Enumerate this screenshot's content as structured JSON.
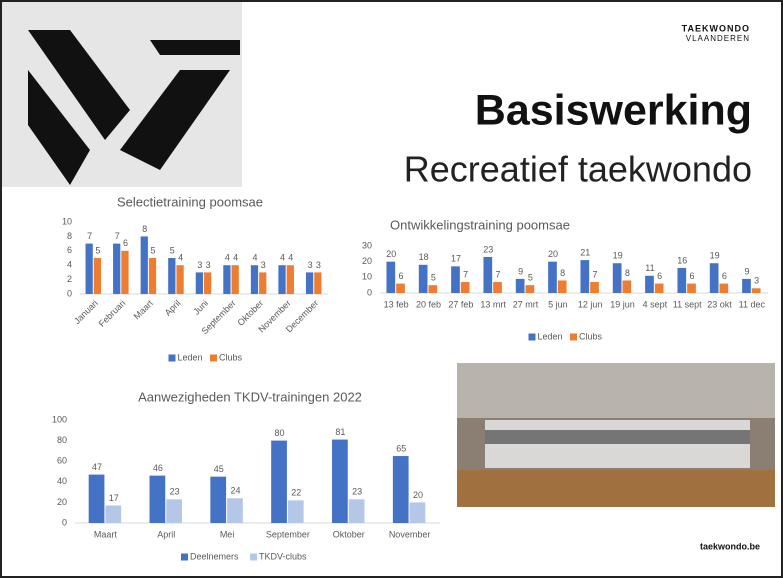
{
  "slide": {
    "brand_line1": "TAEKWONDO",
    "brand_line2": "VLAANDEREN",
    "title": "Basiswerking",
    "subtitle": "Recreatief taekwondo",
    "footer": "taekwondo.be"
  },
  "chart_data": [
    {
      "type": "bar",
      "title": "Selectietraining poomsae",
      "categories": [
        "Januari",
        "Februari",
        "Maart",
        "April",
        "Juni",
        "September",
        "Oktober",
        "November",
        "December"
      ],
      "series": [
        {
          "name": "Leden",
          "color": "#4472c4",
          "values": [
            7,
            7,
            8,
            5,
            3,
            4,
            4,
            4,
            3
          ]
        },
        {
          "name": "Clubs",
          "color": "#ed7d31",
          "values": [
            5,
            6,
            5,
            4,
            3,
            4,
            3,
            4,
            3
          ]
        }
      ],
      "ylim": [
        0,
        10
      ],
      "yticks": [
        0,
        2,
        4,
        6,
        8,
        10
      ],
      "grid": false,
      "legend": "bottom"
    },
    {
      "type": "bar",
      "title": "Ontwikkelingstraining poomsae",
      "categories": [
        "13 feb",
        "20 feb",
        "27 feb",
        "13 mrt",
        "27 mrt",
        "5 jun",
        "12 jun",
        "19 jun",
        "4 sept",
        "11 sept",
        "23 okt",
        "11 dec"
      ],
      "series": [
        {
          "name": "Leden",
          "color": "#4472c4",
          "values": [
            20,
            18,
            17,
            23,
            9,
            20,
            21,
            19,
            11,
            16,
            19,
            9
          ]
        },
        {
          "name": "Clubs",
          "color": "#ed7d31",
          "values": [
            6,
            5,
            7,
            7,
            5,
            8,
            7,
            8,
            6,
            6,
            6,
            3
          ]
        }
      ],
      "ylim": [
        0,
        30
      ],
      "yticks": [
        0,
        10,
        20,
        30
      ],
      "grid": false,
      "legend": "bottom"
    },
    {
      "type": "bar",
      "title": "Aanwezigheden TKDV-trainingen 2022",
      "categories": [
        "Maart",
        "April",
        "Mei",
        "September",
        "Oktober",
        "November"
      ],
      "series": [
        {
          "name": "Deelnemers",
          "color": "#4472c4",
          "values": [
            47,
            46,
            45,
            80,
            81,
            65
          ]
        },
        {
          "name": "TKDV-clubs",
          "color": "#b4c7e7",
          "values": [
            17,
            23,
            24,
            22,
            23,
            20
          ]
        }
      ],
      "ylim": [
        0,
        100
      ],
      "yticks": [
        0,
        20,
        40,
        60,
        80,
        100
      ],
      "grid": false,
      "legend": "bottom"
    }
  ]
}
